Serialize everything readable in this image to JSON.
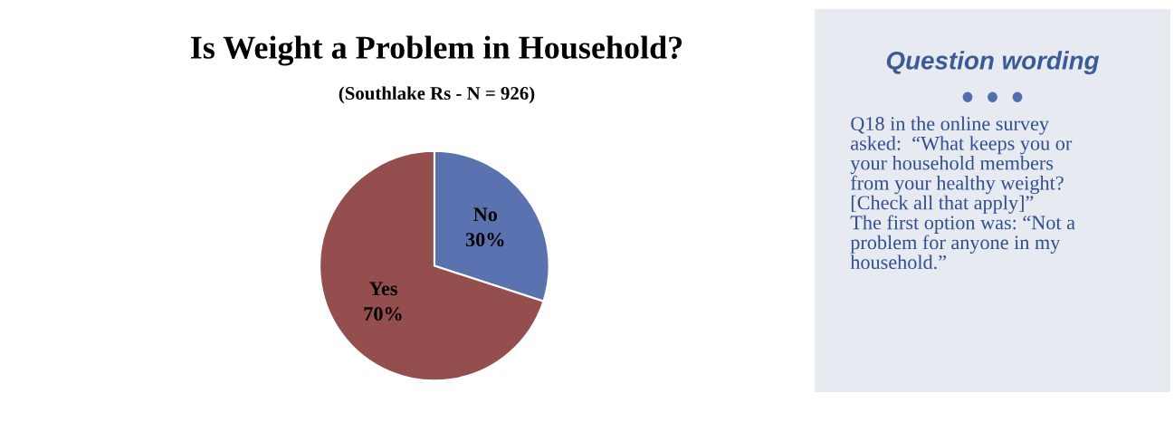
{
  "chart_data": [
    {
      "type": "pie",
      "title": "Is Weight a Problem in Household?",
      "subtitle": "(Southlake Rs - N = 926)",
      "categories": [
        "No",
        "Yes"
      ],
      "values": [
        30,
        70
      ],
      "colors": [
        "#5b72b0",
        "#954e4e"
      ],
      "value_labels": [
        "30%",
        "70%"
      ],
      "legend": false
    },
    {
      "type": "other",
      "title": "Question wording",
      "annotations": [
        "Q18 in the online survey\nasked:  “What keeps you or\nyour household members\nfrom your healthy weight?\n[Check all that apply]”\nThe first option was: “Not a\nproblem for anyone in my\nhousehold.”"
      ]
    }
  ]
}
